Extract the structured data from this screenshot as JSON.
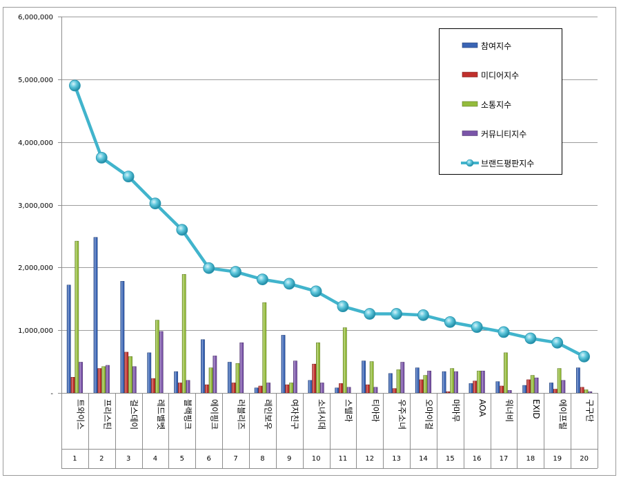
{
  "chart_data": {
    "type": "bar",
    "y_ticks": [
      "6,000,000",
      "5,000,000",
      "4,000,000",
      "3,000,000",
      "2,000,000",
      "1,000,000",
      "-"
    ],
    "ylim": [
      0,
      6000000
    ],
    "grid": true,
    "legend_position": "top-right",
    "categories": [
      "트와이스",
      "프리스틴",
      "걸스데이",
      "레드벨벳",
      "블랙핑크",
      "에이핑크",
      "러블리즈",
      "레인보우",
      "여자친구",
      "소녀시대",
      "스텔라",
      "티아라",
      "우주소녀",
      "오마이걸",
      "마마무",
      "AOA",
      "워너비",
      "EXID",
      "에이프릴",
      "구구단"
    ],
    "ranks": [
      "1",
      "2",
      "3",
      "4",
      "5",
      "6",
      "7",
      "8",
      "9",
      "10",
      "11",
      "12",
      "13",
      "14",
      "15",
      "16",
      "17",
      "18",
      "19",
      "20"
    ],
    "series": [
      {
        "name": "참여지수",
        "type": "bar",
        "color": "#3a64b4",
        "values": [
          1720000,
          2480000,
          1780000,
          640000,
          340000,
          850000,
          490000,
          80000,
          920000,
          200000,
          80000,
          510000,
          310000,
          400000,
          340000,
          150000,
          180000,
          120000,
          160000,
          400000
        ]
      },
      {
        "name": "미디어지수",
        "type": "bar",
        "color": "#c0302c",
        "values": [
          250000,
          390000,
          650000,
          230000,
          160000,
          130000,
          160000,
          110000,
          130000,
          460000,
          150000,
          130000,
          70000,
          210000,
          20000,
          190000,
          110000,
          210000,
          60000,
          90000
        ]
      },
      {
        "name": "소통지수",
        "type": "bar",
        "color": "#94bb3c",
        "values": [
          2420000,
          420000,
          580000,
          1160000,
          1890000,
          400000,
          470000,
          1440000,
          160000,
          800000,
          1040000,
          500000,
          370000,
          280000,
          390000,
          350000,
          640000,
          280000,
          390000,
          50000
        ]
      },
      {
        "name": "커뮤니티지수",
        "type": "bar",
        "color": "#7a54a8",
        "values": [
          490000,
          440000,
          420000,
          980000,
          200000,
          590000,
          800000,
          160000,
          510000,
          160000,
          90000,
          90000,
          490000,
          350000,
          340000,
          350000,
          40000,
          240000,
          200000,
          20000
        ]
      },
      {
        "name": "브랜드평판지수",
        "type": "line",
        "color": "#41b4cc",
        "values": [
          4900000,
          3750000,
          3450000,
          3020000,
          2600000,
          1990000,
          1930000,
          1810000,
          1740000,
          1620000,
          1380000,
          1260000,
          1260000,
          1240000,
          1130000,
          1050000,
          970000,
          870000,
          800000,
          580000
        ]
      }
    ]
  }
}
